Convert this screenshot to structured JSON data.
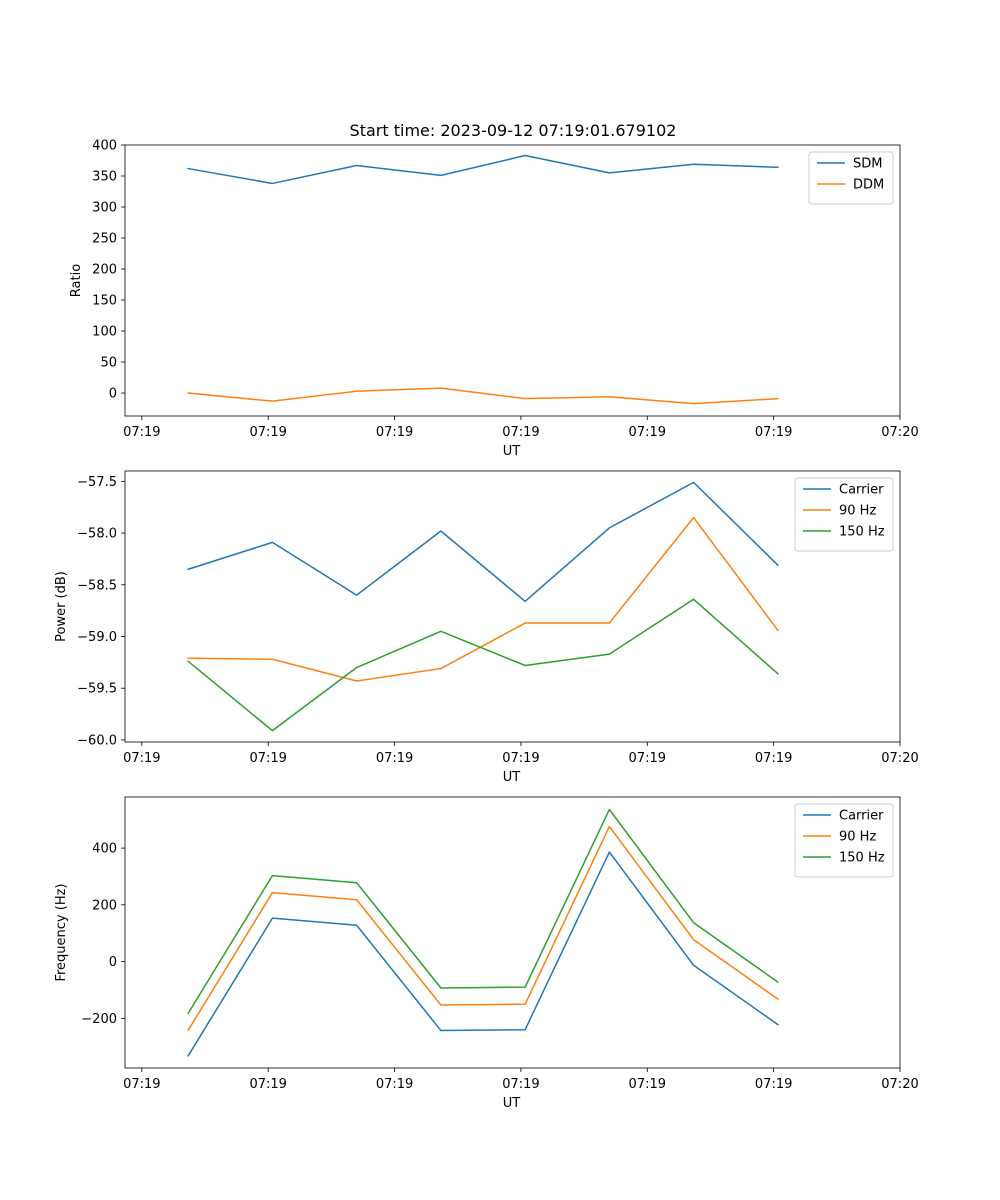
{
  "figure": {
    "title": "Start time: 2023-09-12 07:19:01.679102"
  },
  "colors": {
    "blue": "#1f77b4",
    "orange": "#ff7f0e",
    "green": "#2ca02c"
  },
  "chart_data": [
    {
      "type": "line",
      "title": "Start time: 2023-09-12 07:19:01.679102",
      "xlabel": "UT",
      "ylabel": "Ratio",
      "x": [
        1,
        2,
        3,
        4,
        5,
        6,
        7,
        8
      ],
      "xlim": [
        0.25,
        9.45
      ],
      "xticks": [
        0.45,
        1.95,
        3.45,
        4.95,
        6.45,
        7.95,
        9.45
      ],
      "xtick_labels": [
        "07:19",
        "07:19",
        "07:19",
        "07:19",
        "07:19",
        "07:19",
        "07:20"
      ],
      "ylim": [
        -37,
        400
      ],
      "yticks": [
        0,
        50,
        100,
        150,
        200,
        250,
        300,
        350,
        400
      ],
      "ytick_labels": [
        "0",
        "50",
        "100",
        "150",
        "200",
        "250",
        "300",
        "350",
        "400"
      ],
      "legend_position": "top-right",
      "series": [
        {
          "name": "SDM",
          "color": "#1f77b4",
          "values": [
            362,
            338,
            367,
            351,
            383,
            355,
            369,
            364
          ]
        },
        {
          "name": "DDM",
          "color": "#ff7f0e",
          "values": [
            0,
            -13,
            3,
            8,
            -9,
            -6,
            -17,
            -9
          ]
        }
      ]
    },
    {
      "type": "line",
      "xlabel": "UT",
      "ylabel": "Power (dB)",
      "x": [
        1,
        2,
        3,
        4,
        5,
        6,
        7,
        8
      ],
      "xlim": [
        0.25,
        9.45
      ],
      "xticks": [
        0.45,
        1.95,
        3.45,
        4.95,
        6.45,
        7.95,
        9.45
      ],
      "xtick_labels": [
        "07:19",
        "07:19",
        "07:19",
        "07:19",
        "07:19",
        "07:19",
        "07:20"
      ],
      "ylim": [
        -60.02,
        -57.4
      ],
      "yticks": [
        -60.0,
        -59.5,
        -59.0,
        -58.5,
        -58.0,
        -57.5
      ],
      "ytick_labels": [
        "−60.0",
        "−59.5",
        "−59.0",
        "−58.5",
        "−58.0",
        "−57.5"
      ],
      "legend_position": "top-right",
      "series": [
        {
          "name": "Carrier",
          "color": "#1f77b4",
          "values": [
            -58.35,
            -58.09,
            -58.6,
            -57.98,
            -58.66,
            -57.95,
            -57.51,
            -58.31
          ]
        },
        {
          "name": "90 Hz",
          "color": "#ff7f0e",
          "values": [
            -59.21,
            -59.22,
            -59.43,
            -59.31,
            -58.87,
            -58.87,
            -57.85,
            -58.94
          ]
        },
        {
          "name": "150 Hz",
          "color": "#2ca02c",
          "values": [
            -59.24,
            -59.91,
            -59.3,
            -58.95,
            -59.28,
            -59.17,
            -58.64,
            -59.36
          ]
        }
      ]
    },
    {
      "type": "line",
      "xlabel": "UT",
      "ylabel": "Frequency (Hz)",
      "x": [
        1,
        2,
        3,
        4,
        5,
        6,
        7,
        8
      ],
      "xlim": [
        0.25,
        9.45
      ],
      "xticks": [
        0.45,
        1.95,
        3.45,
        4.95,
        6.45,
        7.95,
        9.45
      ],
      "xtick_labels": [
        "07:19",
        "07:19",
        "07:19",
        "07:19",
        "07:19",
        "07:19",
        "07:20"
      ],
      "ylim": [
        -375,
        580
      ],
      "yticks": [
        -200,
        0,
        200,
        400
      ],
      "ytick_labels": [
        "−200",
        "0",
        "200",
        "400"
      ],
      "legend_position": "top-right",
      "series": [
        {
          "name": "Carrier",
          "color": "#1f77b4",
          "values": [
            -332,
            153,
            128,
            -243,
            -240,
            386,
            -13,
            -222
          ]
        },
        {
          "name": "90 Hz",
          "color": "#ff7f0e",
          "values": [
            -242,
            243,
            218,
            -153,
            -150,
            476,
            77,
            -132
          ]
        },
        {
          "name": "150 Hz",
          "color": "#2ca02c",
          "values": [
            -182,
            303,
            278,
            -93,
            -90,
            536,
            137,
            -72
          ]
        }
      ]
    }
  ]
}
